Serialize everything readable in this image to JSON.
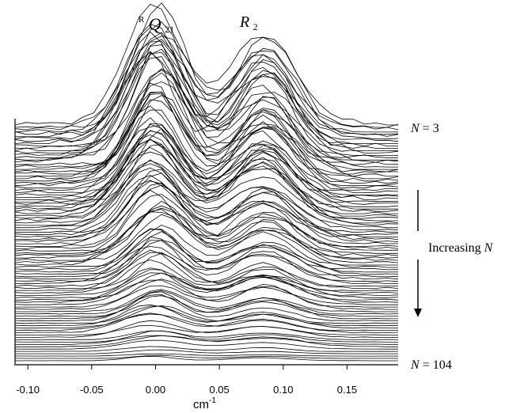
{
  "chart_data": {
    "type": "line",
    "title": "",
    "xlabel": "cm",
    "xlabel_superscript": "-1",
    "ylabel": "",
    "xlim": [
      -0.11,
      0.19
    ],
    "x_ticks": [
      "-0.10",
      "-0.05",
      "0.00",
      "0.05",
      "0.10",
      "0.15"
    ],
    "x_tick_values": [
      -0.1,
      -0.05,
      0.0,
      0.05,
      0.1,
      0.15
    ],
    "grid": false,
    "legend": "none",
    "stacked_offset_spectra": true,
    "spectrum_count": 102,
    "first_spectrum": "N = 3",
    "last_spectrum": "N = 104",
    "peaks": [
      {
        "label_sup": "R",
        "label_main": "Q",
        "label_sub": "21",
        "x": 0.0
      },
      {
        "label_sup": "",
        "label_main": "R",
        "label_sub": "2",
        "x": 0.085
      }
    ],
    "annotations": {
      "top_series": {
        "pre": "N",
        "text": " = 3"
      },
      "bottom_series": {
        "pre": "N",
        "text": " = 104"
      },
      "arrow": {
        "text": "Increasing ",
        "post": "N"
      }
    },
    "line_color": "#000000"
  }
}
